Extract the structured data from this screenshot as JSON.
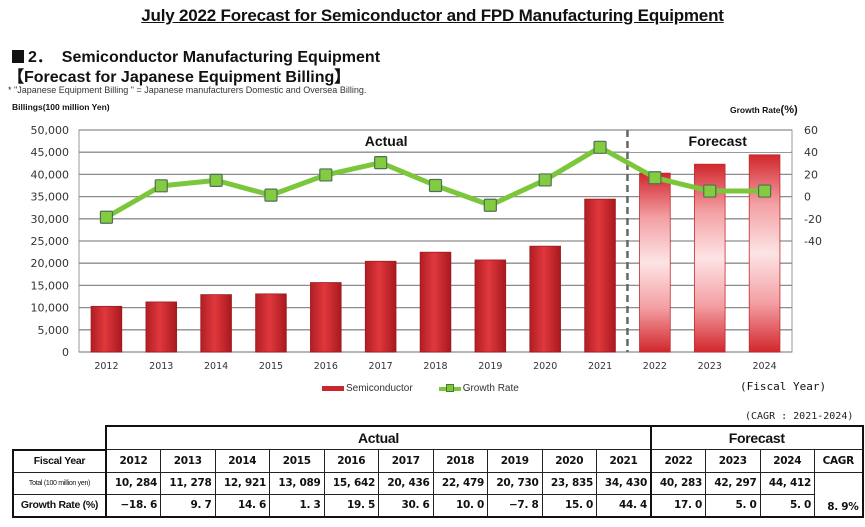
{
  "header": {
    "main_title": "July 2022 Forecast for Semiconductor and FPD Manufacturing Equipment",
    "section_number": "2．",
    "section_title": "Semiconductor Manufacturing Equipment",
    "sub_title": "【Forecast for Japanese Equipment Billing】",
    "note": "* \"Japanese Equipment Billing \" = Japanese manufacturers Domestic and Oversea Billing."
  },
  "chart_data": {
    "type": "bar",
    "title": "Forecast for Japanese Equipment Billing",
    "categories": [
      "2012",
      "2013",
      "2014",
      "2015",
      "2016",
      "2017",
      "2018",
      "2019",
      "2020",
      "2021",
      "2022",
      "2023",
      "2024"
    ],
    "series": [
      {
        "name": "Semiconductor",
        "type": "bar",
        "axis": "left",
        "color": "#c9272d",
        "values": [
          10284,
          11278,
          12921,
          13089,
          15642,
          20436,
          22479,
          20730,
          23835,
          34430,
          40283,
          42297,
          44412
        ]
      },
      {
        "name": "Growth Rate",
        "type": "line",
        "axis": "right",
        "color": "#7cc63c",
        "values": [
          -18.6,
          9.7,
          14.6,
          1.3,
          19.5,
          30.6,
          10.0,
          -7.8,
          15.0,
          44.4,
          17.0,
          5.0,
          5.0
        ]
      }
    ],
    "forecast_start_index": 10,
    "region_labels": {
      "actual": "Actual",
      "forecast": "Forecast"
    },
    "ylabel": "Billings(100 million Yen)",
    "y2label_text": "Growth Rate",
    "y2label_unit": "(%)",
    "xlabel": "(Fiscal Year)",
    "ylim": [
      0,
      50000
    ],
    "yticks": [
      0,
      5000,
      10000,
      15000,
      20000,
      25000,
      30000,
      35000,
      40000,
      45000,
      50000
    ],
    "ytick_labels": [
      "0",
      "5,000",
      "10,000",
      "15,000",
      "20,000",
      "25,000",
      "30,000",
      "35,000",
      "40,000",
      "45,000",
      "50,000"
    ],
    "y2lim": [
      -140,
      60
    ],
    "y2ticks": [
      -40,
      -20,
      0,
      20,
      40,
      60
    ],
    "y2tick_labels": [
      "-40",
      "-20",
      "0",
      "20",
      "40",
      "60"
    ],
    "grid": true,
    "legend_position": "bottom-center"
  },
  "legend": {
    "semiconductor": "Semiconductor",
    "growth_rate": "Growth Rate"
  },
  "table": {
    "cagr_note": "(CAGR : 2021-2024)",
    "actual_header": "Actual",
    "forecast_header": "Forecast",
    "row_labels": [
      "Fiscal Year",
      "Total (100 million yen)",
      "Growth Rate (%)"
    ],
    "years": [
      "2012",
      "2013",
      "2014",
      "2015",
      "2016",
      "2017",
      "2018",
      "2019",
      "2020",
      "2021",
      "2022",
      "2023",
      "2024"
    ],
    "cagr_header": "CAGR",
    "totals": [
      "10, 284",
      "11, 278",
      "12, 921",
      "13, 089",
      "15, 642",
      "20, 436",
      "22, 479",
      "20, 730",
      "23, 835",
      "34, 430",
      "40, 283",
      "42, 297",
      "44, 412"
    ],
    "growth": [
      "−18. 6",
      "9. 7",
      "14. 6",
      "1. 3",
      "19. 5",
      "30. 6",
      "10. 0",
      "−7. 8",
      "15. 0",
      "44. 4",
      "17. 0",
      "5. 0",
      "5. 0"
    ],
    "cagr_value": "8. 9%"
  }
}
